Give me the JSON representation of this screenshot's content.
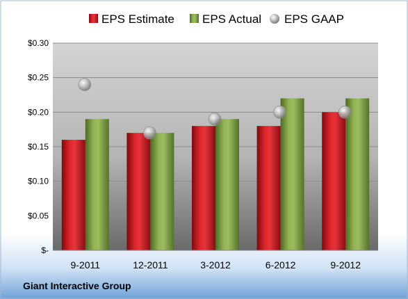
{
  "chart_data": {
    "type": "bar",
    "categories": [
      "9-2011",
      "12-2011",
      "3-2012",
      "6-2012",
      "9-2012"
    ],
    "series": [
      {
        "name": "EPS Estimate",
        "kind": "bar",
        "color": "#c8141c",
        "values": [
          0.16,
          0.17,
          0.18,
          0.18,
          0.2
        ]
      },
      {
        "name": "EPS Actual",
        "kind": "bar",
        "color": "#7a9a3a",
        "values": [
          0.19,
          0.17,
          0.19,
          0.22,
          0.22
        ]
      },
      {
        "name": "EPS GAAP",
        "kind": "marker",
        "color": "#b0b0b0",
        "values": [
          0.24,
          0.17,
          0.19,
          0.2,
          0.2
        ]
      }
    ],
    "y_ticks": [
      {
        "value": 0.3,
        "label": "$0.30"
      },
      {
        "value": 0.25,
        "label": "$0.25"
      },
      {
        "value": 0.2,
        "label": "$0.20"
      },
      {
        "value": 0.15,
        "label": "$0.15"
      },
      {
        "value": 0.1,
        "label": "$0.10"
      },
      {
        "value": 0.05,
        "label": "$0.05"
      },
      {
        "value": 0.0,
        "label": "$-"
      }
    ],
    "ylim": [
      0,
      0.3
    ],
    "grid": true,
    "legend_position": "top"
  },
  "footer": {
    "company": "Giant Interactive Group"
  }
}
